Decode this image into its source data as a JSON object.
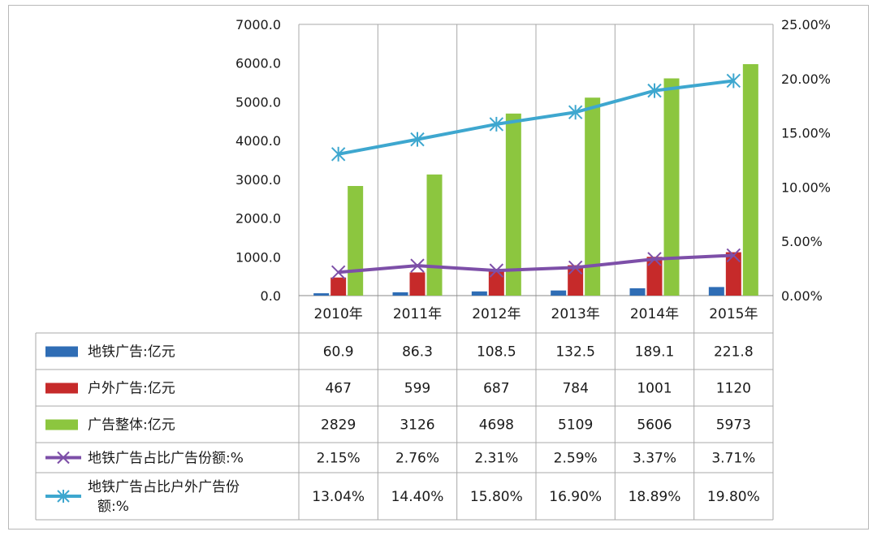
{
  "chart_data": {
    "type": "bar",
    "categories": [
      "2010年",
      "2011年",
      "2012年",
      "2013年",
      "2014年",
      "2015年"
    ],
    "y_left": {
      "ylim": [
        0,
        7000
      ],
      "ticks": [
        "0.0",
        "1000.0",
        "2000.0",
        "3000.0",
        "4000.0",
        "5000.0",
        "6000.0",
        "7000.0"
      ]
    },
    "y_right": {
      "ylim": [
        0,
        25
      ],
      "ticks": [
        "0.00%",
        "5.00%",
        "10.00%",
        "15.00%",
        "20.00%",
        "25.00%"
      ]
    },
    "grid": "vertical",
    "series": [
      {
        "name": "地铁广告:亿元",
        "kind": "bar",
        "axis": "left",
        "color": "#2f6db5",
        "values": [
          60.9,
          86.3,
          108.5,
          132.5,
          189.1,
          221.8
        ],
        "labels": [
          "60.9",
          "86.3",
          "108.5",
          "132.5",
          "189.1",
          "221.8"
        ]
      },
      {
        "name": "户外广告:亿元",
        "kind": "bar",
        "axis": "left",
        "color": "#c62a2a",
        "values": [
          467,
          599,
          687,
          784,
          1001,
          1120
        ],
        "labels": [
          "467",
          "599",
          "687",
          "784",
          "1001",
          "1120"
        ]
      },
      {
        "name": "广告整体:亿元",
        "kind": "bar",
        "axis": "left",
        "color": "#8cc63f",
        "values": [
          2829,
          3126,
          4698,
          5109,
          5606,
          5973
        ],
        "labels": [
          "2829",
          "3126",
          "4698",
          "5109",
          "5606",
          "5973"
        ]
      },
      {
        "name": "地铁广告占比广告份额:%",
        "kind": "line",
        "axis": "right",
        "color": "#7d4fa8",
        "marker": "x",
        "values": [
          2.15,
          2.76,
          2.31,
          2.59,
          3.37,
          3.71
        ],
        "labels": [
          "2.15%",
          "2.76%",
          "2.31%",
          "2.59%",
          "3.37%",
          "3.71%"
        ]
      },
      {
        "name": "地铁广告占比户外广告份",
        "name_line2": "额:%",
        "kind": "line",
        "axis": "right",
        "color": "#3ea7cf",
        "marker": "star",
        "values": [
          13.04,
          14.4,
          15.8,
          16.9,
          18.89,
          19.8
        ],
        "labels": [
          "13.04%",
          "14.40%",
          "15.80%",
          "16.90%",
          "18.89%",
          "19.80%"
        ]
      }
    ]
  }
}
